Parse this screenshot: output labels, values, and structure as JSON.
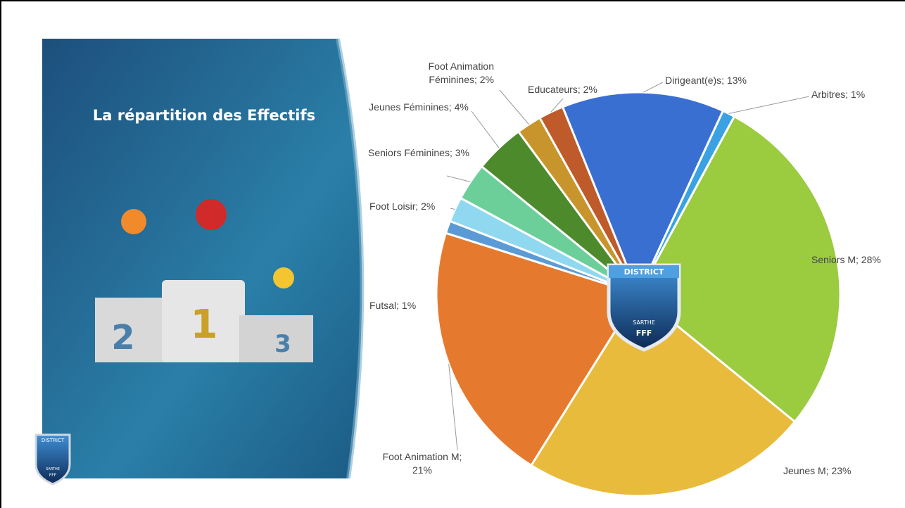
{
  "slide_title": "La répartition des Effectifs",
  "podium": [
    "2",
    "1",
    "3"
  ],
  "logo": {
    "top": "DISTRICT",
    "bottom": "SARTHE",
    "brand": "FFF"
  },
  "chart_data": {
    "type": "pie",
    "values": [
      13,
      1,
      28,
      23,
      21,
      1,
      2,
      3,
      4,
      2,
      2
    ],
    "value_labels": [
      "Dirigeant(e)s; 13%",
      "Arbitres; 1%",
      "Seniors M; 28%",
      "Jeunes M; 23%",
      "Foot Animation M; 21%",
      "Futsal; 1%",
      "Foot Loisir; 2%",
      "Seniors Féminines; 3%",
      "Jeunes Féminines; 4%",
      "Foot Animation Féminines; 2%",
      "Educateurs; 2%"
    ],
    "colors": [
      "#3a6fd2",
      "#3aa2e2",
      "#9bcb3e",
      "#e9bb3c",
      "#e57a2e",
      "#5b9bd5",
      "#8fd8f0",
      "#6ccf9a",
      "#4d8a2c",
      "#c8952c",
      "#bf5a2a"
    ]
  }
}
